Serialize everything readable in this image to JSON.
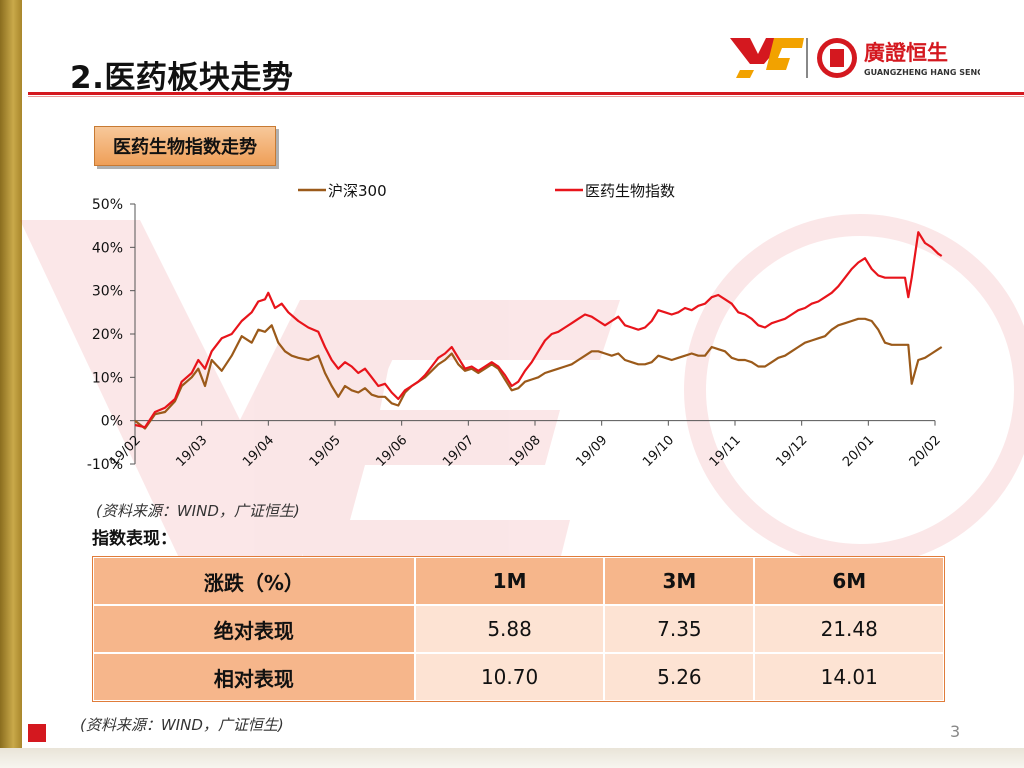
{
  "header": {
    "title": "2.医药板块走势",
    "logo_cn": "廣證恒生",
    "logo_en": "GUANGZHENG HANG SENG"
  },
  "section": {
    "badge": "医药生物指数走势"
  },
  "chart_data": {
    "type": "line",
    "x_ticks": [
      "19/02",
      "19/03",
      "19/04",
      "19/05",
      "19/06",
      "19/07",
      "19/08",
      "19/09",
      "19/10",
      "19/11",
      "19/12",
      "20/01",
      "20/02"
    ],
    "ylim": [
      -10,
      50
    ],
    "y_ticks": [
      "-10%",
      "0%",
      "10%",
      "20%",
      "30%",
      "40%",
      "50%"
    ],
    "legend": "top",
    "series": [
      {
        "name": "沪深300",
        "color": "#9b5a1a",
        "points": [
          [
            0.0,
            0.0
          ],
          [
            0.15,
            -1.8
          ],
          [
            0.3,
            1.5
          ],
          [
            0.45,
            2.0
          ],
          [
            0.6,
            4.5
          ],
          [
            0.7,
            8.0
          ],
          [
            0.85,
            10.0
          ],
          [
            0.95,
            12.0
          ],
          [
            1.05,
            8.0
          ],
          [
            1.15,
            14.0
          ],
          [
            1.3,
            11.5
          ],
          [
            1.45,
            15.0
          ],
          [
            1.6,
            19.5
          ],
          [
            1.75,
            18.0
          ],
          [
            1.85,
            21.0
          ],
          [
            1.95,
            20.5
          ],
          [
            2.05,
            22.0
          ],
          [
            2.15,
            18.0
          ],
          [
            2.25,
            16.0
          ],
          [
            2.35,
            15.0
          ],
          [
            2.45,
            14.5
          ],
          [
            2.6,
            14.0
          ],
          [
            2.75,
            15.0
          ],
          [
            2.85,
            11.0
          ],
          [
            2.95,
            8.0
          ],
          [
            3.05,
            5.5
          ],
          [
            3.15,
            8.0
          ],
          [
            3.25,
            7.0
          ],
          [
            3.35,
            6.5
          ],
          [
            3.45,
            7.5
          ],
          [
            3.55,
            6.0
          ],
          [
            3.65,
            5.5
          ],
          [
            3.75,
            5.5
          ],
          [
            3.85,
            4.0
          ],
          [
            3.95,
            3.5
          ],
          [
            4.05,
            6.5
          ],
          [
            4.15,
            8.0
          ],
          [
            4.25,
            9.0
          ],
          [
            4.35,
            10.0
          ],
          [
            4.45,
            11.5
          ],
          [
            4.55,
            13.0
          ],
          [
            4.65,
            14.0
          ],
          [
            4.75,
            15.5
          ],
          [
            4.85,
            13.0
          ],
          [
            4.95,
            11.5
          ],
          [
            5.05,
            12.0
          ],
          [
            5.15,
            11.0
          ],
          [
            5.25,
            12.0
          ],
          [
            5.35,
            13.0
          ],
          [
            5.45,
            12.0
          ],
          [
            5.55,
            9.5
          ],
          [
            5.65,
            7.0
          ],
          [
            5.75,
            7.5
          ],
          [
            5.85,
            9.0
          ],
          [
            5.95,
            9.5
          ],
          [
            6.05,
            10.0
          ],
          [
            6.15,
            11.0
          ],
          [
            6.25,
            11.5
          ],
          [
            6.35,
            12.0
          ],
          [
            6.45,
            12.5
          ],
          [
            6.55,
            13.0
          ],
          [
            6.65,
            14.0
          ],
          [
            6.75,
            15.0
          ],
          [
            6.85,
            16.0
          ],
          [
            6.95,
            16.0
          ],
          [
            7.05,
            15.5
          ],
          [
            7.15,
            15.0
          ],
          [
            7.25,
            15.5
          ],
          [
            7.35,
            14.0
          ],
          [
            7.45,
            13.5
          ],
          [
            7.55,
            13.0
          ],
          [
            7.65,
            13.0
          ],
          [
            7.75,
            13.5
          ],
          [
            7.85,
            15.0
          ],
          [
            7.95,
            14.5
          ],
          [
            8.05,
            14.0
          ],
          [
            8.15,
            14.5
          ],
          [
            8.25,
            15.0
          ],
          [
            8.35,
            15.5
          ],
          [
            8.45,
            15.0
          ],
          [
            8.55,
            15.0
          ],
          [
            8.65,
            17.0
          ],
          [
            8.75,
            16.5
          ],
          [
            8.85,
            16.0
          ],
          [
            8.95,
            14.5
          ],
          [
            9.05,
            14.0
          ],
          [
            9.15,
            14.0
          ],
          [
            9.25,
            13.5
          ],
          [
            9.35,
            12.5
          ],
          [
            9.45,
            12.5
          ],
          [
            9.55,
            13.5
          ],
          [
            9.65,
            14.5
          ],
          [
            9.75,
            15.0
          ],
          [
            9.85,
            16.0
          ],
          [
            9.95,
            17.0
          ],
          [
            10.05,
            18.0
          ],
          [
            10.15,
            18.5
          ],
          [
            10.25,
            19.0
          ],
          [
            10.35,
            19.5
          ],
          [
            10.45,
            21.0
          ],
          [
            10.55,
            22.0
          ],
          [
            10.65,
            22.5
          ],
          [
            10.75,
            23.0
          ],
          [
            10.85,
            23.5
          ],
          [
            10.95,
            23.5
          ],
          [
            11.05,
            23.0
          ],
          [
            11.15,
            21.0
          ],
          [
            11.25,
            18.0
          ],
          [
            11.35,
            17.5
          ],
          [
            11.45,
            17.5
          ],
          [
            11.55,
            17.5
          ],
          [
            11.6,
            17.5
          ],
          [
            11.65,
            8.5
          ],
          [
            11.75,
            14.0
          ],
          [
            11.85,
            14.5
          ],
          [
            11.95,
            15.5
          ],
          [
            12.05,
            16.5
          ],
          [
            12.1,
            17.0
          ]
        ]
      },
      {
        "name": "医药生物指数",
        "color": "#e8141b",
        "points": [
          [
            0.0,
            -1.0
          ],
          [
            0.15,
            -1.5
          ],
          [
            0.3,
            2.0
          ],
          [
            0.45,
            3.0
          ],
          [
            0.6,
            5.0
          ],
          [
            0.7,
            9.0
          ],
          [
            0.85,
            11.0
          ],
          [
            0.95,
            14.0
          ],
          [
            1.05,
            12.0
          ],
          [
            1.15,
            16.0
          ],
          [
            1.3,
            19.0
          ],
          [
            1.45,
            20.0
          ],
          [
            1.6,
            23.0
          ],
          [
            1.75,
            25.0
          ],
          [
            1.85,
            27.5
          ],
          [
            1.95,
            28.0
          ],
          [
            2.0,
            29.5
          ],
          [
            2.1,
            26.0
          ],
          [
            2.2,
            27.0
          ],
          [
            2.3,
            25.0
          ],
          [
            2.45,
            23.0
          ],
          [
            2.6,
            21.5
          ],
          [
            2.75,
            20.5
          ],
          [
            2.85,
            17.0
          ],
          [
            2.95,
            14.0
          ],
          [
            3.05,
            12.0
          ],
          [
            3.15,
            13.5
          ],
          [
            3.25,
            12.5
          ],
          [
            3.35,
            11.0
          ],
          [
            3.45,
            12.0
          ],
          [
            3.55,
            10.0
          ],
          [
            3.65,
            8.0
          ],
          [
            3.75,
            8.5
          ],
          [
            3.85,
            6.5
          ],
          [
            3.95,
            5.0
          ],
          [
            4.05,
            7.0
          ],
          [
            4.15,
            8.0
          ],
          [
            4.25,
            9.0
          ],
          [
            4.35,
            10.5
          ],
          [
            4.45,
            12.5
          ],
          [
            4.55,
            14.5
          ],
          [
            4.65,
            15.5
          ],
          [
            4.75,
            17.0
          ],
          [
            4.85,
            14.5
          ],
          [
            4.95,
            12.0
          ],
          [
            5.05,
            12.5
          ],
          [
            5.15,
            11.5
          ],
          [
            5.25,
            12.5
          ],
          [
            5.35,
            13.5
          ],
          [
            5.45,
            12.5
          ],
          [
            5.55,
            10.5
          ],
          [
            5.65,
            8.0
          ],
          [
            5.75,
            9.0
          ],
          [
            5.85,
            11.5
          ],
          [
            5.95,
            13.5
          ],
          [
            6.05,
            16.0
          ],
          [
            6.15,
            18.5
          ],
          [
            6.25,
            20.0
          ],
          [
            6.35,
            20.5
          ],
          [
            6.45,
            21.5
          ],
          [
            6.55,
            22.5
          ],
          [
            6.65,
            23.5
          ],
          [
            6.75,
            24.5
          ],
          [
            6.85,
            24.0
          ],
          [
            6.95,
            23.0
          ],
          [
            7.05,
            22.0
          ],
          [
            7.15,
            23.0
          ],
          [
            7.25,
            24.0
          ],
          [
            7.35,
            22.0
          ],
          [
            7.45,
            21.5
          ],
          [
            7.55,
            21.0
          ],
          [
            7.65,
            21.5
          ],
          [
            7.75,
            23.0
          ],
          [
            7.85,
            25.5
          ],
          [
            7.95,
            25.0
          ],
          [
            8.05,
            24.5
          ],
          [
            8.15,
            25.0
          ],
          [
            8.25,
            26.0
          ],
          [
            8.35,
            25.5
          ],
          [
            8.45,
            26.5
          ],
          [
            8.55,
            27.0
          ],
          [
            8.65,
            28.5
          ],
          [
            8.75,
            29.0
          ],
          [
            8.85,
            28.0
          ],
          [
            8.95,
            27.0
          ],
          [
            9.05,
            25.0
          ],
          [
            9.15,
            24.5
          ],
          [
            9.25,
            23.5
          ],
          [
            9.35,
            22.0
          ],
          [
            9.45,
            21.5
          ],
          [
            9.55,
            22.5
          ],
          [
            9.65,
            23.0
          ],
          [
            9.75,
            23.5
          ],
          [
            9.85,
            24.5
          ],
          [
            9.95,
            25.5
          ],
          [
            10.05,
            26.0
          ],
          [
            10.15,
            27.0
          ],
          [
            10.25,
            27.5
          ],
          [
            10.35,
            28.5
          ],
          [
            10.45,
            29.5
          ],
          [
            10.55,
            31.0
          ],
          [
            10.65,
            33.0
          ],
          [
            10.75,
            35.0
          ],
          [
            10.85,
            36.5
          ],
          [
            10.95,
            37.5
          ],
          [
            11.05,
            35.0
          ],
          [
            11.15,
            33.5
          ],
          [
            11.25,
            33.0
          ],
          [
            11.35,
            33.0
          ],
          [
            11.45,
            33.0
          ],
          [
            11.55,
            33.0
          ],
          [
            11.6,
            28.5
          ],
          [
            11.65,
            33.0
          ],
          [
            11.75,
            43.5
          ],
          [
            11.85,
            41.0
          ],
          [
            11.95,
            40.0
          ],
          [
            12.05,
            38.5
          ],
          [
            12.1,
            38.0
          ]
        ]
      }
    ]
  },
  "source_note": "(资料来源：WIND，广证恒生)",
  "table_title": "指数表现：",
  "table": {
    "header": [
      "涨跌（%）",
      "1M",
      "3M",
      "6M"
    ],
    "rows": [
      [
        "绝对表现",
        "5.88",
        "7.35",
        "21.48"
      ],
      [
        "相对表现",
        "10.70",
        "5.26",
        "14.01"
      ]
    ]
  },
  "source_note2": "(资料来源：WIND，广证恒生)",
  "page_number": "3"
}
